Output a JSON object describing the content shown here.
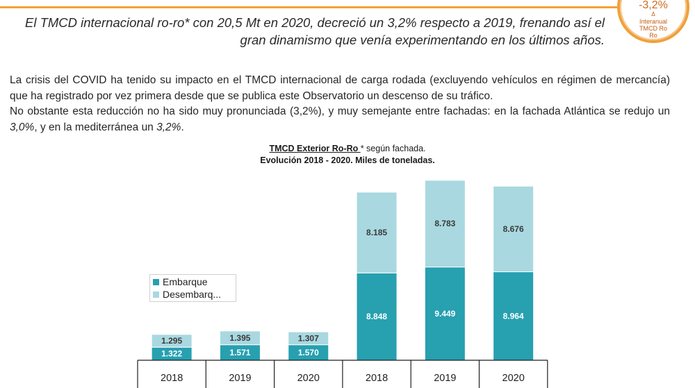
{
  "headline": {
    "line1": "El TMCD internacional ro-ro* con 20,5 Mt en 2020, decreció un 3,2% respecto a 2019, frenando así el",
    "line2": "gran dinamismo que venía experimentando en los últimos años."
  },
  "badge": {
    "value": "-3,2%",
    "delta": "Δ",
    "line1": "Interanual",
    "line2": "TMCD Ro",
    "line3": "Ro"
  },
  "paragraph1": "La crisis del COVID ha tenido su impacto en el TMCD internacional de carga rodada (excluyendo vehículos en régimen de mercancía) que ha registrado por vez primera desde que se publica este Observatorio un descenso de su tráfico.",
  "paragraph2": {
    "lead": "No obstante esta reducción no ha sido muy pronunciada (3,2%), y muy semejante entre fachadas: en la fachada Atlántica se redujo un ",
    "atl": "3,0%",
    "mid": ", y en la  mediterránea un ",
    "med": "3,2%",
    "tail": "."
  },
  "colors": {
    "embarque": "#27a0b0",
    "desembarque": "#a9d8e0",
    "accent": "#f2a436"
  },
  "chart_data": {
    "type": "bar",
    "stacked": true,
    "title_underlined": "TMCD Exterior Ro-Ro ",
    "title_rest": "* según fachada.",
    "subtitle": "Evolución 2018 - 2020. Miles de toneladas.",
    "categories": [
      "2018",
      "2019",
      "2020",
      "2018",
      "2019",
      "2020"
    ],
    "series": [
      {
        "name": "Embarque",
        "values": [
          1322,
          1571,
          1570,
          8848,
          9449,
          8964
        ],
        "labels": [
          "1.322",
          "1.571",
          "1.570",
          "8.848",
          "9.449",
          "8.964"
        ]
      },
      {
        "name": "Desembarque",
        "values": [
          1295,
          1395,
          1307,
          8185,
          8783,
          8676
        ],
        "labels": [
          "1.295",
          "1.395",
          "1.307",
          "8.185",
          "8.783",
          "8.676"
        ]
      }
    ],
    "legend_labels": [
      "Embarque",
      "Desembarq..."
    ],
    "ylim": [
      0,
      18500
    ]
  }
}
